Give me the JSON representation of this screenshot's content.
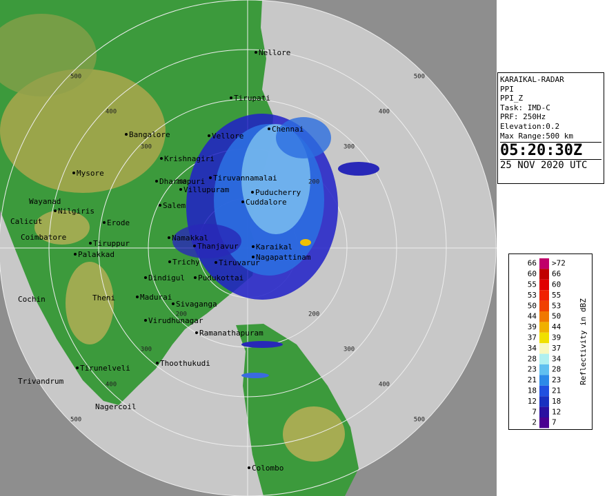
{
  "info": {
    "station": "KARAIKAL-RADAR",
    "mode": "PPI",
    "product": "PPI_Z",
    "task": "Task: IMD-C",
    "prf": "PRF: 250Hz",
    "elevation": "Elevation:0.2",
    "range": "Max Range:500 km",
    "time": "05:20:30Z",
    "date": "25 NOV 2020 UTC"
  },
  "range_labels": [
    "200",
    "300",
    "400",
    "500"
  ],
  "cities": [
    "Nellore",
    "Tirupati",
    "Bangalore",
    "Vellore",
    "Chennai",
    "Krishnagiri",
    "Tiruvannamalai",
    "Dharmapuri",
    "Villupuram",
    "Puducherry",
    "Cuddalore",
    "Mysore",
    "Wayanad",
    "Nilgiris",
    "Salem",
    "Calicut",
    "Erode",
    "Namakkal",
    "Coimbatore",
    "Tiruppur",
    "Palakkad",
    "Karaikal",
    "Nagapattinam",
    "Thanjavur",
    "Tiruvarur",
    "Trichy",
    "Pudukottai",
    "Dindigul",
    "Madurai",
    "Theni",
    "Sivaganga",
    "Virudhunagar",
    "Ramanathapuram",
    "Thoothukudi",
    "Tirunelveli",
    "Trivandrum",
    "Nagercoil",
    "Cochin",
    "Colombo"
  ],
  "legend": {
    "title": "Reflectivity in dBZ",
    "left": [
      "66",
      "60",
      "55",
      "53",
      "50",
      "44",
      "39",
      "37",
      "34",
      "28",
      "23",
      "21",
      "18",
      "12",
      "7",
      "2"
    ],
    "right": [
      ">72",
      "66",
      "60",
      "55",
      "53",
      "50",
      "44",
      "39",
      "37",
      "34",
      "28",
      "23",
      "21",
      "18",
      "12",
      "7"
    ]
  }
}
